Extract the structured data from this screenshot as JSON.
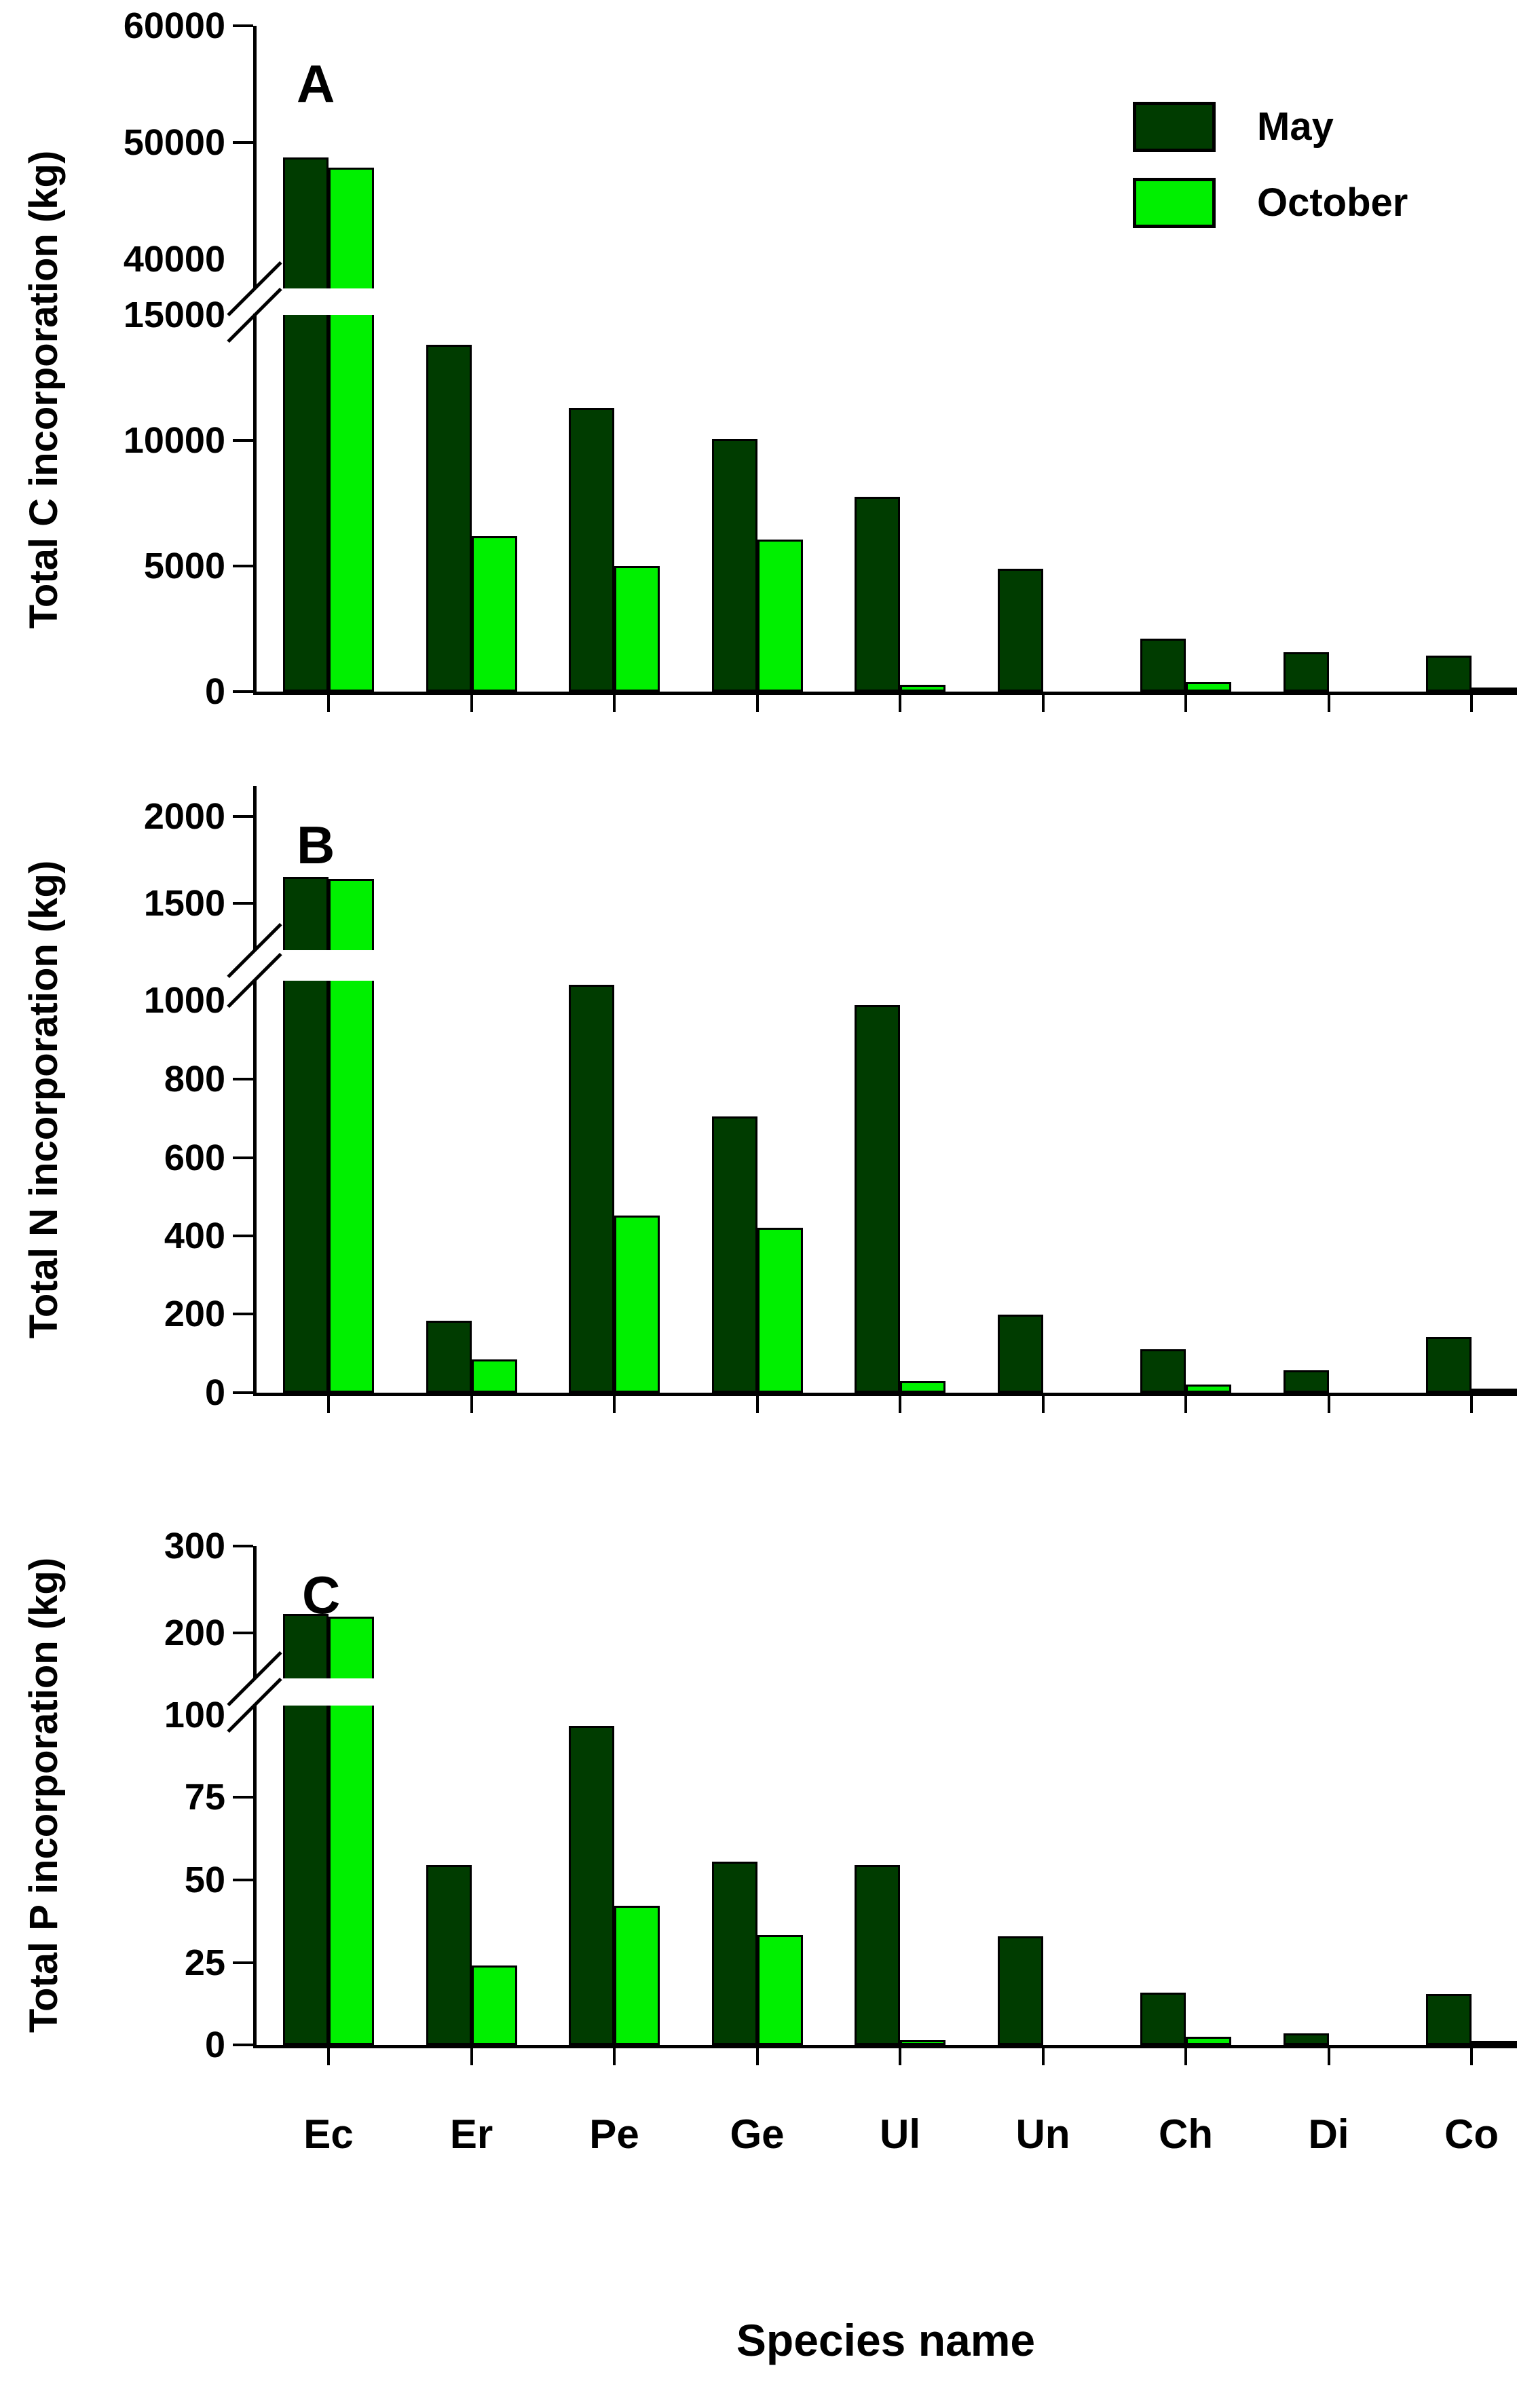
{
  "figure": {
    "xlabel": "Species name",
    "categories": [
      "Ec",
      "Er",
      "Pe",
      "Ge",
      "Ul",
      "Un",
      "Ch",
      "Di",
      "Co"
    ],
    "legend": {
      "position": "top-right",
      "items": [
        {
          "label": "May",
          "color": "#003c00"
        },
        {
          "label": "October",
          "color": "#00f000"
        }
      ]
    },
    "colors": {
      "may": "#003c00",
      "october": "#00f000",
      "axis": "#000000",
      "background": "#ffffff"
    }
  },
  "chart_data": [
    {
      "type": "bar",
      "panel": "A",
      "ylabel": "Total C incorporation (kg)",
      "xlabel": "Species name",
      "categories": [
        "Ec",
        "Er",
        "Pe",
        "Ge",
        "Ul",
        "Un",
        "Ch",
        "Di",
        "Co"
      ],
      "series": [
        {
          "name": "May",
          "values": [
            48700,
            13800,
            11300,
            10050,
            7750,
            4890,
            2120,
            1560,
            1430
          ]
        },
        {
          "name": "October",
          "values": [
            47850,
            6180,
            5000,
            6050,
            280,
            0,
            390,
            0,
            90
          ]
        }
      ],
      "axis_break": true,
      "lower_ylim": [
        0,
        15000
      ],
      "upper_ylim": [
        40000,
        60000
      ],
      "lower_ticks": [
        0,
        5000,
        10000,
        15000
      ],
      "upper_ticks": [
        40000,
        50000,
        60000
      ],
      "grid": false,
      "legend_position": "top-right"
    },
    {
      "type": "bar",
      "panel": "B",
      "ylabel": "Total N incorporation (kg)",
      "xlabel": "Species name",
      "categories": [
        "Ec",
        "Er",
        "Pe",
        "Ge",
        "Ul",
        "Un",
        "Ch",
        "Di",
        "Co"
      ],
      "series": [
        {
          "name": "May",
          "values": [
            1652,
            175,
            990,
            670,
            940,
            190,
            105,
            55,
            135
          ]
        },
        {
          "name": "October",
          "values": [
            1640,
            80,
            430,
            400,
            28,
            0,
            20,
            0,
            5
          ]
        }
      ],
      "axis_break": true,
      "lower_ylim": [
        0,
        1000
      ],
      "upper_ylim": [
        1231,
        2100
      ],
      "lower_ticks": [
        0,
        200,
        400,
        600,
        800,
        1000
      ],
      "upper_ticks": [
        1500,
        2000
      ],
      "grid": false,
      "legend_position": "none"
    },
    {
      "type": "bar",
      "panel": "C",
      "ylabel": "Total P incorporation (kg)",
      "xlabel": "Species name",
      "categories": [
        "Ec",
        "Er",
        "Pe",
        "Ge",
        "Ul",
        "Un",
        "Ch",
        "Di",
        "Co"
      ],
      "series": [
        {
          "name": "May",
          "values": [
            222,
            53,
            94,
            54,
            53,
            32,
            15.5,
            3.5,
            15
          ]
        },
        {
          "name": "October",
          "values": [
            219,
            23.5,
            41,
            32.5,
            1.5,
            0,
            2.5,
            0,
            0.8
          ]
        }
      ],
      "axis_break": true,
      "lower_ylim": [
        0,
        100
      ],
      "upper_ylim": [
        148,
        300
      ],
      "lower_ticks": [
        0,
        25,
        50,
        75,
        100
      ],
      "upper_ticks": [
        200,
        300
      ],
      "grid": false,
      "legend_position": "none"
    }
  ]
}
